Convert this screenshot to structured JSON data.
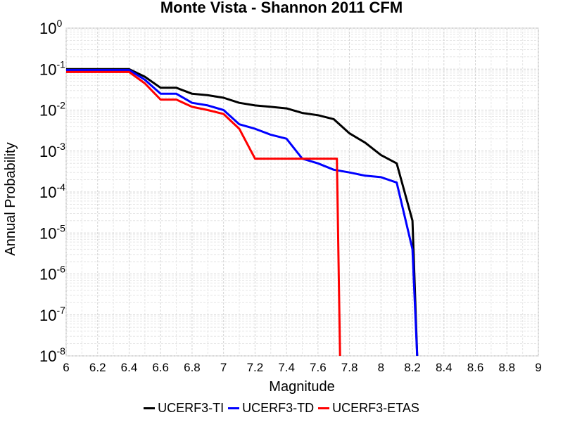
{
  "chart_data": {
    "type": "line",
    "title": "Monte Vista - Shannon 2011 CFM",
    "xlabel": "Magnitude",
    "ylabel": "Annual Probability",
    "xlim": [
      6,
      9
    ],
    "ylim": [
      1e-08,
      1
    ],
    "yscale": "log",
    "x_ticks": [
      "6",
      "6.2",
      "6.4",
      "6.6",
      "6.8",
      "7",
      "7.2",
      "7.4",
      "7.6",
      "7.8",
      "8",
      "8.2",
      "8.4",
      "8.6",
      "8.8",
      "9"
    ],
    "y_tick_exponents": [
      "0",
      "-1",
      "-2",
      "-3",
      "-4",
      "-5",
      "-6",
      "-7",
      "-8"
    ],
    "grid": true,
    "legend_position": "bottom-center",
    "series": [
      {
        "name": "UCERF3-TI",
        "color": "#000000",
        "x": [
          6.0,
          6.4,
          6.5,
          6.6,
          6.7,
          6.8,
          6.9,
          7.0,
          7.1,
          7.2,
          7.3,
          7.4,
          7.5,
          7.6,
          7.7,
          7.8,
          7.9,
          8.0,
          8.1,
          8.2,
          8.23
        ],
        "y": [
          0.1,
          0.1,
          0.065,
          0.035,
          0.035,
          0.025,
          0.023,
          0.02,
          0.015,
          0.013,
          0.012,
          0.011,
          0.0085,
          0.0075,
          0.006,
          0.0027,
          0.0016,
          0.0008,
          0.0005,
          2e-05,
          1e-08
        ]
      },
      {
        "name": "UCERF3-TD",
        "color": "#0000ff",
        "x": [
          6.0,
          6.4,
          6.5,
          6.6,
          6.7,
          6.8,
          6.9,
          7.0,
          7.1,
          7.2,
          7.3,
          7.4,
          7.5,
          7.6,
          7.7,
          7.8,
          7.9,
          8.0,
          8.1,
          8.2,
          8.23
        ],
        "y": [
          0.095,
          0.095,
          0.055,
          0.025,
          0.025,
          0.015,
          0.013,
          0.01,
          0.0045,
          0.0035,
          0.0025,
          0.002,
          0.00065,
          0.0005,
          0.00035,
          0.0003,
          0.00025,
          0.00023,
          0.00017,
          4e-06,
          1e-08
        ]
      },
      {
        "name": "UCERF3-ETAS",
        "color": "#ff0000",
        "x": [
          6.0,
          6.4,
          6.5,
          6.6,
          6.7,
          6.8,
          6.9,
          7.0,
          7.1,
          7.2,
          7.3,
          7.4,
          7.5,
          7.6,
          7.7,
          7.72,
          7.74
        ],
        "y": [
          0.085,
          0.085,
          0.045,
          0.018,
          0.018,
          0.012,
          0.01,
          0.008,
          0.0035,
          0.00065,
          0.00065,
          0.00065,
          0.00065,
          0.00065,
          0.00065,
          0.00065,
          1e-08
        ]
      }
    ]
  }
}
